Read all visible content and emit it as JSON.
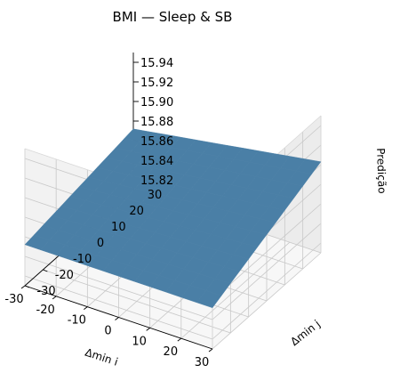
{
  "chart_data": {
    "type": "surface3d",
    "title": "BMI — Sleep & SB",
    "xlabel": "Δmin i",
    "ylabel": "Δmin j",
    "zlabel": "Predição",
    "x_ticks": [
      -30,
      -20,
      -10,
      0,
      10,
      20,
      30
    ],
    "y_ticks": [
      -30,
      -20,
      -10,
      0,
      10,
      20,
      30
    ],
    "z_ticks": [
      15.82,
      15.84,
      15.86,
      15.88,
      15.9,
      15.92,
      15.94
    ],
    "xlim": [
      -30,
      30
    ],
    "ylim": [
      -30,
      30
    ],
    "zlim": [
      15.81,
      15.95
    ],
    "grid": true,
    "surface_color": "#4a7fa6",
    "surface_corners": [
      {
        "x": -30,
        "y": -30,
        "z": 15.852
      },
      {
        "x": 30,
        "y": -30,
        "z": 15.852
      },
      {
        "x": 30,
        "y": 30,
        "z": 15.903
      },
      {
        "x": -30,
        "y": 30,
        "z": 15.872
      }
    ]
  }
}
